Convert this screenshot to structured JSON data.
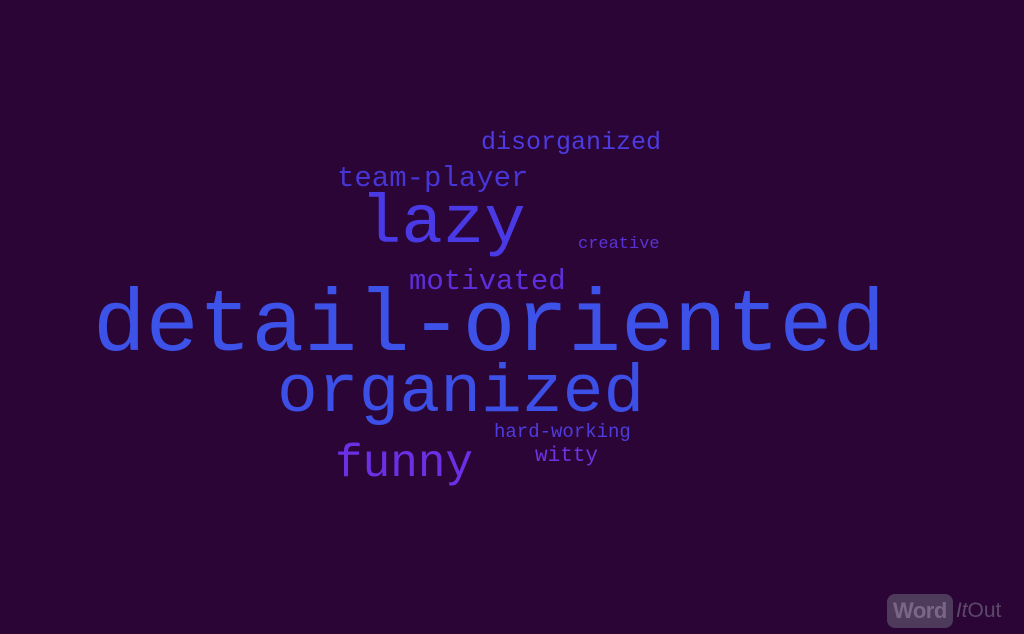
{
  "cloud": {
    "background_color": "#2a0536",
    "words": [
      {
        "id": "disorganized",
        "text": "disorganized",
        "color": "#4c3be0"
      },
      {
        "id": "team-player",
        "text": "team-player",
        "color": "#4735d6"
      },
      {
        "id": "lazy",
        "text": "lazy",
        "color": "#4a3ae6"
      },
      {
        "id": "creative",
        "text": "creative",
        "color": "#5a33d4"
      },
      {
        "id": "motivated",
        "text": "motivated",
        "color": "#5d2fdb"
      },
      {
        "id": "detail-oriented",
        "text": "detail-oriented",
        "color": "#3d52e8"
      },
      {
        "id": "organized",
        "text": "organized",
        "color": "#3c4fe6"
      },
      {
        "id": "hard-working",
        "text": "hard-working",
        "color": "#4f3cdc"
      },
      {
        "id": "witty",
        "text": "witty",
        "color": "#6a34e0"
      },
      {
        "id": "funny",
        "text": "funny",
        "color": "#6a30e4"
      }
    ]
  },
  "logo": {
    "word": "Word",
    "it": "It",
    "out": "Out"
  }
}
